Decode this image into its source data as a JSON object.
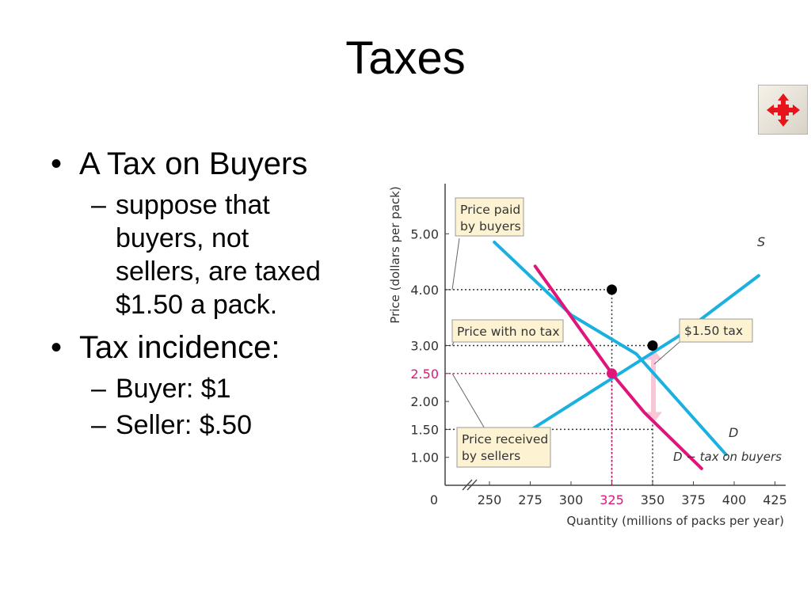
{
  "slide": {
    "title": "Taxes",
    "bullets": [
      {
        "text": "A Tax on Buyers",
        "sub": [
          "suppose that",
          "buyers, not",
          "sellers, are taxed",
          "$1.50 a pack."
        ]
      },
      {
        "text": "Tax incidence:",
        "sub": [
          "Buyer: $1",
          "Seller: $.50"
        ]
      }
    ],
    "nav_icon": "four-arrows-icon",
    "nav_color": "#e8141c"
  },
  "chart_data": {
    "type": "line",
    "xlabel": "Quantity (millions of packs per year)",
    "ylabel": "Price (dollars per pack)",
    "xticks": [
      "250",
      "275",
      "300",
      "325",
      "350",
      "375",
      "400",
      "425"
    ],
    "x_origin_label": "0",
    "yticks": [
      "1.00",
      "1.50",
      "2.00",
      "2.50",
      "3.00",
      "4.00",
      "5.00"
    ],
    "xlim": [
      250,
      425
    ],
    "ylim": [
      0.5,
      5.3
    ],
    "series": [
      {
        "name": "S",
        "color": "#1ab0e0",
        "points": [
          [
            265,
            1.3
          ],
          [
            365,
            3.15
          ],
          [
            415,
            4.25
          ]
        ]
      },
      {
        "name": "D",
        "color": "#1ab0e0",
        "points": [
          [
            253,
            4.85
          ],
          [
            300,
            3.55
          ],
          [
            340,
            2.85
          ],
          [
            395,
            1.05
          ]
        ]
      },
      {
        "name": "D − tax on buyers",
        "color": "#e0147a",
        "points": [
          [
            278,
            4.42
          ],
          [
            325,
            2.5
          ],
          [
            345,
            1.8
          ],
          [
            380,
            0.8
          ]
        ]
      }
    ],
    "equilibria": [
      {
        "x": 325,
        "y": 4.0,
        "color": "#000000"
      },
      {
        "x": 350,
        "y": 3.0,
        "color": "#000000"
      },
      {
        "x": 325,
        "y": 2.5,
        "color": "#e0147a"
      }
    ],
    "highlight_tick_x": "325",
    "highlight_tick_y": "2.50",
    "highlight_color": "#e0147a",
    "annotations": {
      "price_paid": "Price paid\nby buyers",
      "no_tax": "Price with no tax",
      "tax": "$1.50 tax",
      "received": "Price received\nby sellers",
      "s_label": "S",
      "d_label": "D",
      "d_tax_label": "D − tax on buyers"
    },
    "label_box_color": "#fdf3d3",
    "tax_arrow_color": "#f9c6d8"
  }
}
